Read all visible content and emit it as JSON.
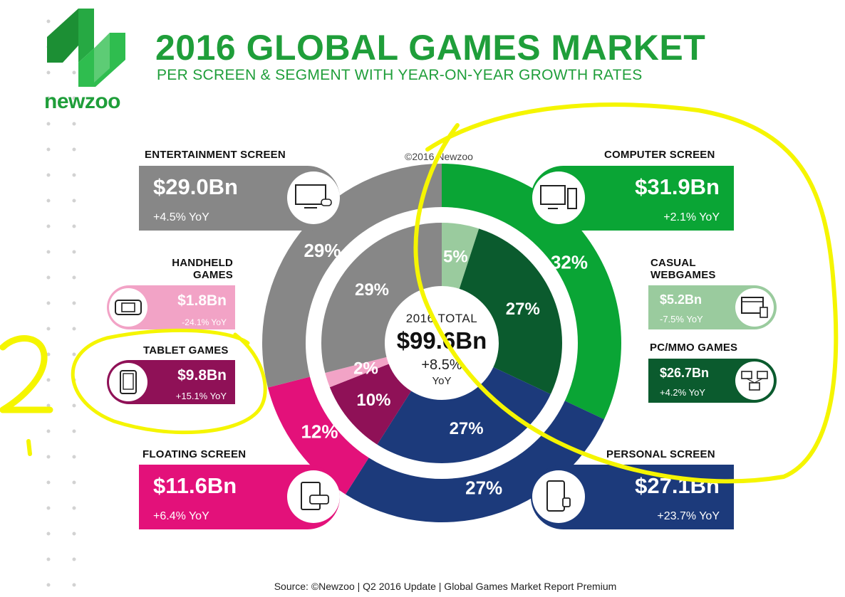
{
  "header": {
    "title": "2016 GLOBAL GAMES MARKET",
    "subtitle": "PER SCREEN & SEGMENT WITH YEAR-ON-YEAR GROWTH RATES",
    "brand": "newzoo"
  },
  "copyright": "©2016 Newzoo",
  "center": {
    "total_label": "2016 TOTAL",
    "total_value": "$99.6Bn",
    "growth": "+8.5%",
    "growth_unit": "YoY"
  },
  "source": "Source: ©Newzoo | Q2 2016 Update | Global Games Market Report Premium",
  "colors": {
    "green": "#0aa535",
    "dark_green": "#0b5b2e",
    "light_green": "#9acb9e",
    "navy": "#1c3a7b",
    "magenta": "#e3117a",
    "plum": "#8f1157",
    "pink": "#f2a3c6",
    "gray": "#878787",
    "highlight": "#f5f500"
  },
  "boxes": {
    "entertainment": {
      "label": "ENTERTAINMENT SCREEN",
      "value": "$29.0Bn",
      "yoy": "+4.5% YoY",
      "icon": "tv-console-icon"
    },
    "computer": {
      "label": "COMPUTER SCREEN",
      "value": "$31.9Bn",
      "yoy": "+2.1% YoY",
      "icon": "desktop-computer-icon"
    },
    "floating": {
      "label": "FLOATING SCREEN",
      "value": "$11.6Bn",
      "yoy": "+6.4% YoY",
      "icon": "tablet-handheld-icon"
    },
    "personal": {
      "label": "PERSONAL SCREEN",
      "value": "$27.1Bn",
      "yoy": "+23.7% YoY",
      "icon": "smartphone-watch-icon"
    },
    "handheld": {
      "label_line1": "HANDHELD",
      "label_line2": "GAMES",
      "value": "$1.8Bn",
      "yoy": "-24.1% YoY",
      "icon": "handheld-console-icon"
    },
    "tablet": {
      "label": "TABLET GAMES",
      "value": "$9.8Bn",
      "yoy": "+15.1% YoY",
      "icon": "tablet-icon"
    },
    "casual": {
      "label_line1": "CASUAL",
      "label_line2": "WEBGAMES",
      "value": "$5.2Bn",
      "yoy": "-7.5% YoY",
      "icon": "browser-icon"
    },
    "pcmmo": {
      "label": "PC/MMO GAMES",
      "value": "$26.7Bn",
      "yoy": "+4.2% YoY",
      "icon": "networked-pcs-icon"
    }
  },
  "annotation": {
    "text": "2"
  },
  "chart_data": [
    {
      "type": "pie",
      "ring": "outer",
      "categories": [
        "Computer Screen",
        "Personal Screen",
        "Floating Screen",
        "Entertainment Screen"
      ],
      "values": [
        32,
        27,
        12,
        29
      ],
      "labels": [
        "32%",
        "27%",
        "12%",
        "29%"
      ],
      "colors": [
        "#0aa535",
        "#1c3a7b",
        "#e3117a",
        "#878787"
      ]
    },
    {
      "type": "pie",
      "ring": "inner",
      "categories": [
        "Casual Webgames",
        "PC/MMO Games",
        "Personal Screen",
        "Tablet Games",
        "Handheld Games",
        "Entertainment Screen"
      ],
      "values": [
        5,
        27,
        27,
        10,
        2,
        29
      ],
      "labels": [
        "5%",
        "27%",
        "27%",
        "10%",
        "2%",
        "29%"
      ],
      "colors": [
        "#9acb9e",
        "#0b5b2e",
        "#1c3a7b",
        "#8f1157",
        "#f2a3c6",
        "#878787"
      ]
    }
  ]
}
